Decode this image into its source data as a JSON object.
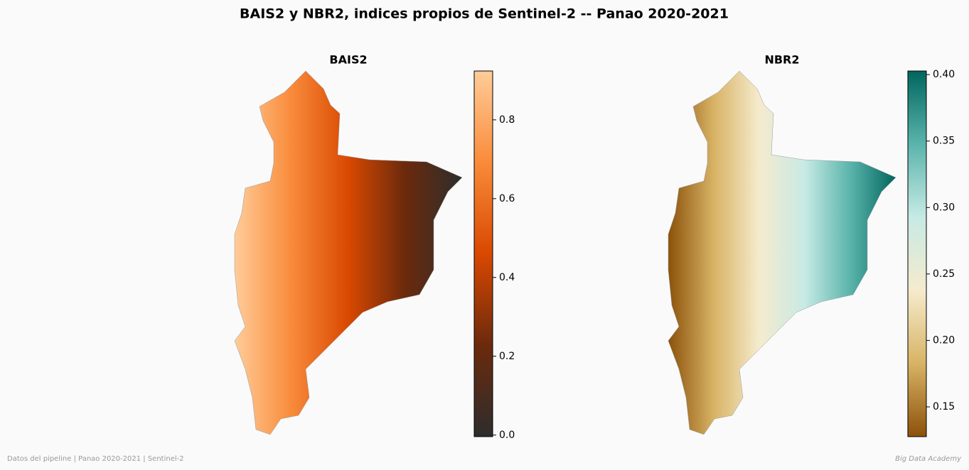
{
  "title": "BAIS2 y NBR2, indices propios de Sentinel-2 -- Panao 2020-2021",
  "panels": [
    {
      "title": "BAIS2",
      "colormap": [
        "#2d2d2d",
        "#6b2a0c",
        "#d94801",
        "#f98b3a",
        "#ffcc99"
      ],
      "lim": [
        -0.004,
        0.924
      ],
      "ticks": [
        {
          "value": 0,
          "label": "0.0"
        },
        0.2,
        0.4,
        0.6,
        0.8
      ]
    },
    {
      "title": "NBR2",
      "colormap": [
        "#8c510a",
        "#d8b365",
        "#f5ebcd",
        "#c7eae5",
        "#5ab4ac",
        "#01665e"
      ],
      "lim": [
        0.1276,
        0.4027
      ],
      "ticks": [
        0.15,
        {
          "value": 0.2,
          "label": "0.20"
        },
        0.25,
        {
          "value": 0.3,
          "label": "0.30"
        },
        0.35,
        {
          "value": 0.4,
          "label": "0.40"
        }
      ]
    }
  ],
  "footer": {
    "left": "Datos del pipeline | Panao 2020-2021 | Sentinel-2",
    "right": "Big Data Academy"
  }
}
